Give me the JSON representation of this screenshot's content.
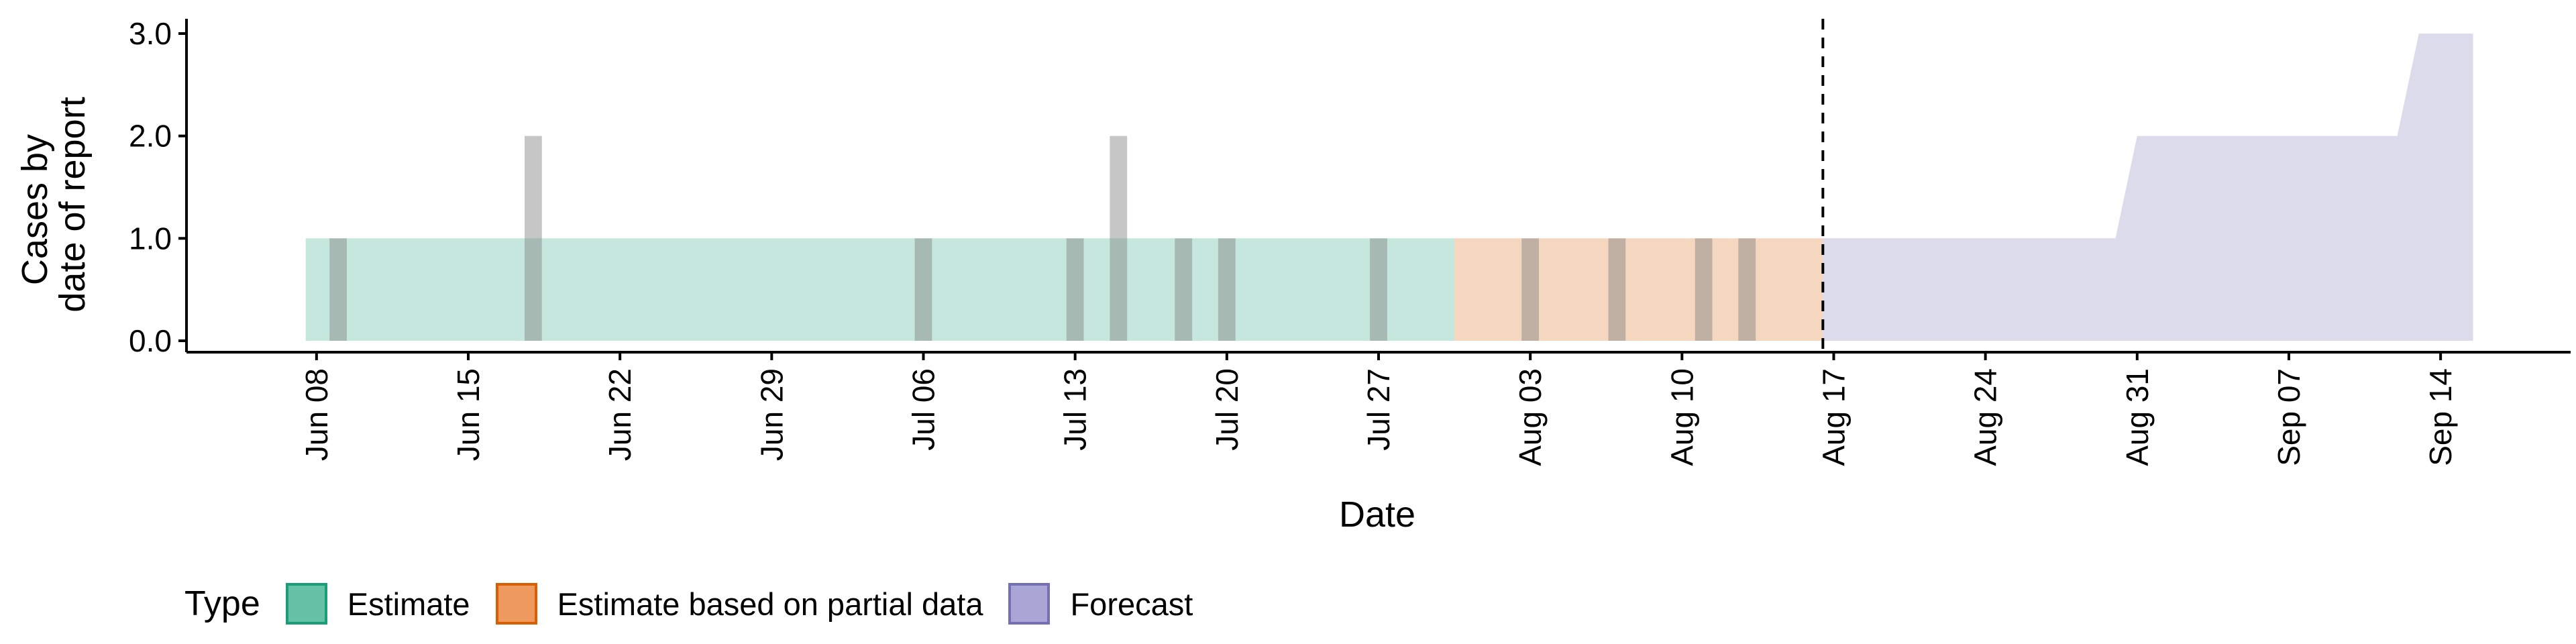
{
  "chart_data": {
    "type": "area",
    "title": "",
    "xlabel": "Date",
    "ylabel": "Cases by\ndate of report",
    "ylim": [
      0,
      3
    ],
    "xlim": [
      "2020-06-02",
      "2020-09-20"
    ],
    "y_ticks": [
      "0.0",
      "1.0",
      "2.0",
      "3.0"
    ],
    "x_ticks": [
      {
        "date": "2020-06-08",
        "label": "Jun 08"
      },
      {
        "date": "2020-06-15",
        "label": "Jun 15"
      },
      {
        "date": "2020-06-22",
        "label": "Jun 22"
      },
      {
        "date": "2020-06-29",
        "label": "Jun 29"
      },
      {
        "date": "2020-07-06",
        "label": "Jul 06"
      },
      {
        "date": "2020-07-13",
        "label": "Jul 13"
      },
      {
        "date": "2020-07-20",
        "label": "Jul 20"
      },
      {
        "date": "2020-07-27",
        "label": "Jul 27"
      },
      {
        "date": "2020-08-03",
        "label": "Aug 03"
      },
      {
        "date": "2020-08-10",
        "label": "Aug 10"
      },
      {
        "date": "2020-08-17",
        "label": "Aug 17"
      },
      {
        "date": "2020-08-24",
        "label": "Aug 24"
      },
      {
        "date": "2020-08-31",
        "label": "Aug 31"
      },
      {
        "date": "2020-09-07",
        "label": "Sep 07"
      },
      {
        "date": "2020-09-14",
        "label": "Sep 14"
      }
    ],
    "forecast_line_date": "2020-08-16",
    "series": [
      {
        "name": "Estimate",
        "color": "#1B9E77",
        "points": [
          {
            "x": "2020-06-08",
            "y": 1
          },
          {
            "x": "2020-07-30",
            "y": 1
          }
        ]
      },
      {
        "name": "Estimate based on partial data",
        "color": "#D95F02",
        "points": [
          {
            "x": "2020-07-31",
            "y": 1
          },
          {
            "x": "2020-08-16",
            "y": 1
          }
        ]
      },
      {
        "name": "Forecast",
        "color": "#7570B3",
        "points": [
          {
            "x": "2020-08-17",
            "y": 1
          },
          {
            "x": "2020-08-30",
            "y": 1
          },
          {
            "x": "2020-08-31",
            "y": 2
          },
          {
            "x": "2020-09-12",
            "y": 2
          },
          {
            "x": "2020-09-13",
            "y": 3
          },
          {
            "x": "2020-09-15",
            "y": 3
          }
        ]
      }
    ],
    "reported_cases": [
      {
        "date": "2020-06-09",
        "value": 1
      },
      {
        "date": "2020-06-18",
        "value": 2
      },
      {
        "date": "2020-07-06",
        "value": 1
      },
      {
        "date": "2020-07-13",
        "value": 1
      },
      {
        "date": "2020-07-15",
        "value": 2
      },
      {
        "date": "2020-07-18",
        "value": 1
      },
      {
        "date": "2020-07-20",
        "value": 1
      },
      {
        "date": "2020-07-27",
        "value": 1
      },
      {
        "date": "2020-08-03",
        "value": 1
      },
      {
        "date": "2020-08-07",
        "value": 1
      },
      {
        "date": "2020-08-11",
        "value": 1
      },
      {
        "date": "2020-08-13",
        "value": 1
      }
    ],
    "legend": {
      "title": "Type",
      "position": "bottom",
      "items": [
        {
          "label": "Estimate",
          "fill": "#66C2A5",
          "border": "#1B9E77"
        },
        {
          "label": "Estimate based on partial data",
          "fill": "#EE9A5F",
          "border": "#D95F02"
        },
        {
          "label": "Forecast",
          "fill": "#A9A6D6",
          "border": "#7570B3"
        }
      ]
    },
    "grid": false
  }
}
